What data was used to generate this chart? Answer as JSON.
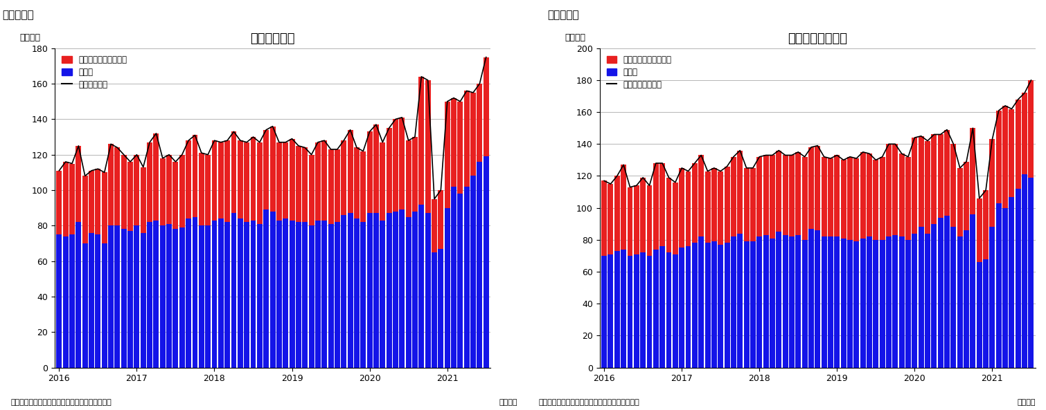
{
  "chart1_title": "住宅着工件数",
  "chart2_title": "住宅着工許可件数",
  "chart1_label": "（図表１）",
  "chart2_label": "（図表２）",
  "ylabel": "（万件）",
  "xlabel": "（月次）",
  "source": "（資料）センサス局よりニッセイ基礎研究所作成",
  "legend_labels": [
    "集合住宅（二戸以上）",
    "戸建て"
  ],
  "legend_line1": "住宅着工件数",
  "legend_line2": "住宅建築許可件数",
  "bar_color_red": "#e82020",
  "bar_color_blue": "#1414e8",
  "line_color": "#000000",
  "chart1_ylim": [
    0,
    180
  ],
  "chart1_yticks": [
    0,
    20,
    40,
    60,
    80,
    100,
    120,
    140,
    160,
    180
  ],
  "chart2_ylim": [
    0,
    200
  ],
  "chart2_yticks": [
    0,
    20,
    40,
    60,
    80,
    100,
    120,
    140,
    160,
    180,
    200
  ],
  "xtick_years": [
    "2016",
    "2017",
    "2018",
    "2019",
    "2020",
    "2021"
  ],
  "chart1_blue": [
    75,
    74,
    75,
    82,
    70,
    76,
    75,
    70,
    80,
    80,
    78,
    77,
    80,
    76,
    82,
    83,
    80,
    81,
    78,
    79,
    84,
    85,
    80,
    80,
    83,
    84,
    82,
    87,
    84,
    82,
    83,
    81,
    89,
    88,
    83,
    84,
    83,
    82,
    82,
    80,
    83,
    83,
    81,
    82,
    86,
    87,
    84,
    82,
    87,
    87,
    83,
    87,
    88,
    89,
    85,
    88,
    92,
    87,
    65,
    67,
    90,
    102,
    98,
    102,
    108,
    116,
    119
  ],
  "chart1_red": [
    36,
    42,
    40,
    43,
    38,
    35,
    37,
    40,
    46,
    44,
    42,
    39,
    40,
    37,
    45,
    49,
    38,
    39,
    38,
    41,
    44,
    46,
    41,
    40,
    45,
    43,
    46,
    46,
    44,
    45,
    47,
    46,
    45,
    48,
    44,
    43,
    46,
    43,
    42,
    40,
    44,
    45,
    42,
    41,
    42,
    47,
    40,
    40,
    46,
    50,
    44,
    48,
    52,
    52,
    43,
    42,
    72,
    75,
    30,
    33,
    60,
    50,
    52,
    54,
    47,
    44,
    56
  ],
  "chart2_blue": [
    70,
    71,
    73,
    74,
    70,
    71,
    72,
    70,
    74,
    76,
    72,
    71,
    75,
    76,
    78,
    82,
    78,
    79,
    77,
    78,
    82,
    84,
    79,
    79,
    82,
    83,
    81,
    85,
    83,
    82,
    83,
    80,
    87,
    86,
    82,
    82,
    82,
    81,
    80,
    79,
    81,
    82,
    80,
    80,
    82,
    83,
    82,
    80,
    84,
    88,
    84,
    90,
    94,
    95,
    88,
    82,
    86,
    96,
    66,
    68,
    88,
    103,
    100,
    107,
    112,
    121,
    119
  ],
  "chart2_red": [
    47,
    44,
    47,
    53,
    43,
    43,
    47,
    44,
    54,
    52,
    47,
    45,
    50,
    47,
    50,
    51,
    45,
    46,
    46,
    48,
    50,
    52,
    46,
    46,
    50,
    50,
    52,
    51,
    50,
    51,
    52,
    52,
    51,
    53,
    50,
    49,
    51,
    49,
    52,
    52,
    54,
    52,
    50,
    52,
    58,
    57,
    52,
    52,
    60,
    57,
    58,
    56,
    52,
    54,
    52,
    43,
    43,
    54,
    40,
    43,
    55,
    58,
    64,
    55,
    56,
    51,
    61
  ],
  "n_months": 67
}
